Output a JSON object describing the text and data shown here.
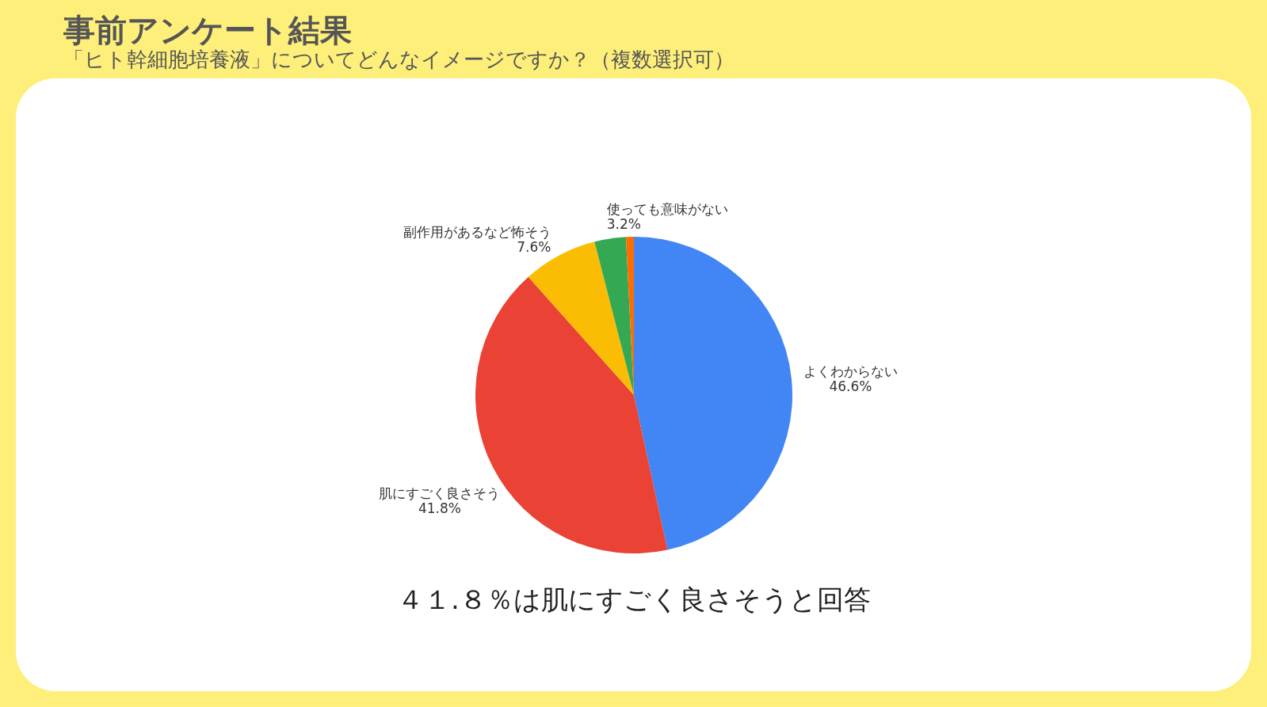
{
  "chart_data": {
    "type": "pie",
    "title": "事前アンケート結果",
    "subtitle": "「ヒト幹細胞培養液」についてどんなイメージですか？（複数選択可）",
    "categories": [
      "よくわからない",
      "肌にすごく良さそう",
      "副作用があるなど怖そう",
      "使っても意味がない",
      null
    ],
    "values": [
      46.6,
      41.8,
      7.6,
      3.2,
      0.8
    ],
    "value_labels": [
      "46.6%",
      "41.8%",
      "7.6%",
      "3.2%",
      null
    ],
    "colors": [
      "#4285f4",
      "#ea4335",
      "#fbbc04",
      "#34a853",
      "#ff6d01"
    ],
    "annotations": [
      "４１.８％は肌にすごく良さそうと回答"
    ],
    "legend": false
  }
}
